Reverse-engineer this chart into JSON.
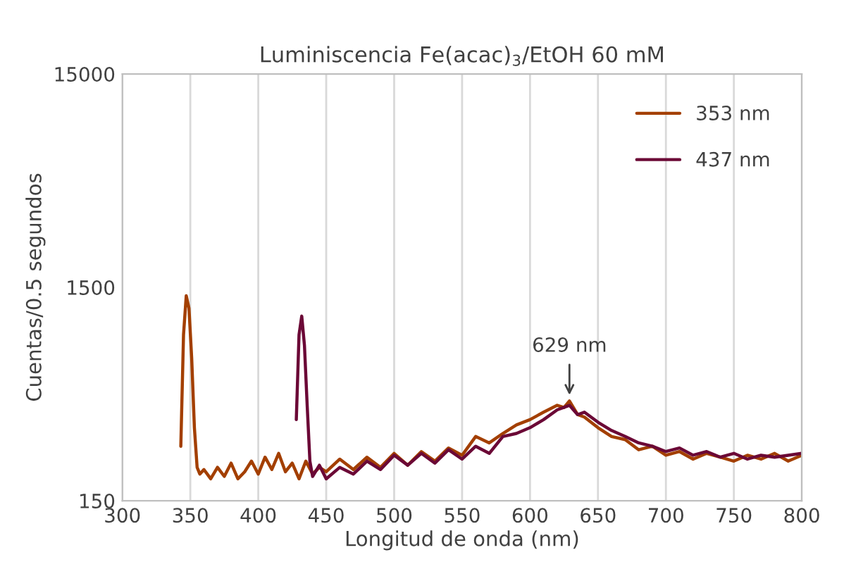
{
  "chart_data": {
    "type": "line",
    "title": "Luminiscencia Fe(acac)$_{3}$/EtOH 60 mM",
    "xlabel": "Longitud de onda (nm)",
    "ylabel": "Cuentas/0.5 segundos",
    "xlim": [
      300,
      800
    ],
    "xticks": [
      300,
      350,
      400,
      450,
      500,
      550,
      600,
      650,
      700,
      750,
      800
    ],
    "ylim": [
      150,
      15000
    ],
    "yticks": [
      150,
      1500,
      15000
    ],
    "log": "y",
    "grid": "x",
    "legend": "top right",
    "line_style": "solid",
    "marker": "none",
    "annotations": [
      {
        "text": "629 nm",
        "x": 629,
        "y": 450
      }
    ],
    "series": [
      {
        "name": "353 nm",
        "color": "#a33f00",
        "x": [
          343,
          345,
          347,
          349,
          351,
          353,
          355,
          357,
          360,
          365,
          370,
          375,
          380,
          385,
          390,
          395,
          400,
          405,
          410,
          415,
          420,
          425,
          430,
          435,
          440,
          445,
          450,
          460,
          470,
          480,
          490,
          500,
          510,
          520,
          530,
          540,
          550,
          560,
          570,
          580,
          590,
          600,
          610,
          620,
          625,
          629,
          635,
          640,
          650,
          660,
          670,
          680,
          690,
          700,
          710,
          720,
          730,
          740,
          750,
          760,
          770,
          780,
          790,
          800
        ],
        "values": [
          270,
          900,
          1370,
          1200,
          700,
          330,
          215,
          200,
          210,
          190,
          215,
          195,
          225,
          190,
          205,
          230,
          200,
          240,
          210,
          250,
          205,
          225,
          190,
          230,
          200,
          215,
          205,
          235,
          210,
          240,
          215,
          250,
          220,
          255,
          230,
          265,
          245,
          300,
          280,
          310,
          340,
          360,
          390,
          420,
          410,
          440,
          380,
          370,
          330,
          300,
          290,
          260,
          270,
          245,
          255,
          235,
          250,
          240,
          230,
          245,
          235,
          250,
          230,
          245
        ]
      },
      {
        "name": "437 nm",
        "color": "#6b0836",
        "x": [
          428,
          430,
          432,
          434,
          436,
          438,
          440,
          445,
          450,
          460,
          470,
          480,
          490,
          500,
          510,
          520,
          530,
          540,
          550,
          560,
          570,
          580,
          590,
          600,
          610,
          620,
          629,
          635,
          640,
          650,
          660,
          670,
          680,
          690,
          700,
          710,
          720,
          730,
          740,
          750,
          760,
          770,
          780,
          800
        ],
        "values": [
          360,
          900,
          1100,
          800,
          420,
          230,
          195,
          220,
          190,
          215,
          200,
          230,
          210,
          245,
          220,
          250,
          225,
          260,
          235,
          270,
          250,
          300,
          310,
          330,
          360,
          400,
          420,
          380,
          390,
          350,
          320,
          300,
          280,
          270,
          255,
          265,
          245,
          255,
          240,
          250,
          235,
          245,
          240,
          250
        ]
      }
    ]
  }
}
